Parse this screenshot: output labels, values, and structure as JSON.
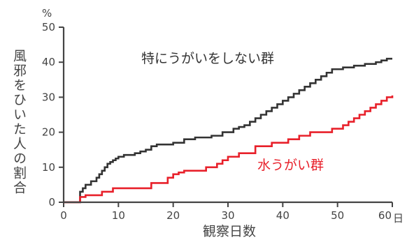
{
  "chart_data": {
    "type": "line",
    "step": true,
    "ylabel": "風邪をひいた人の割合",
    "yunit": "%",
    "xlabel": "観察日数",
    "xunit": "日",
    "xlim": [
      0,
      60
    ],
    "ylim": [
      0,
      50
    ],
    "xticks": [
      0,
      10,
      20,
      30,
      40,
      50,
      60
    ],
    "yticks": [
      0,
      10,
      20,
      30,
      40,
      50
    ],
    "grid": false,
    "series": [
      {
        "name": "特にうがいをしない群",
        "color": "#333333",
        "x": [
          0,
          3,
          3.5,
          4,
          5,
          6,
          6.5,
          7,
          7.5,
          8,
          8.5,
          9,
          9.5,
          10,
          11,
          13,
          14,
          15,
          16,
          17,
          20,
          22,
          24,
          27,
          29,
          31,
          32,
          33,
          34,
          35,
          36,
          37,
          38,
          39,
          40,
          41,
          42,
          43,
          44,
          45,
          46,
          47,
          48,
          49,
          51,
          53,
          55,
          57,
          58,
          59,
          60
        ],
        "values": [
          0,
          3,
          4,
          5,
          6,
          7,
          8,
          9,
          10,
          11,
          11.5,
          12,
          12.5,
          13,
          13.5,
          14,
          14.5,
          15,
          16,
          16.5,
          17,
          18,
          18.5,
          19,
          20,
          21,
          21.5,
          22,
          23,
          24,
          25,
          26,
          27,
          28,
          29,
          30,
          31,
          32,
          33,
          34,
          35,
          36,
          37,
          38,
          38.5,
          39,
          39.5,
          40,
          40.5,
          41,
          41
        ]
      },
      {
        "name": "水うがい群",
        "color": "#e8202a",
        "x": [
          0,
          3,
          4,
          6,
          7,
          9,
          16,
          19,
          20,
          21,
          22,
          26,
          28,
          29,
          30,
          32,
          35,
          38,
          41,
          43,
          45,
          49,
          51,
          52,
          53,
          54,
          55,
          56,
          57,
          58,
          59,
          60
        ],
        "values": [
          0,
          1.5,
          2,
          2,
          3,
          4,
          5.5,
          7,
          8,
          8.5,
          9,
          10,
          11,
          12,
          13,
          14,
          16,
          17,
          18,
          19,
          20,
          21,
          22,
          23,
          24,
          25,
          26,
          27,
          28,
          29,
          30,
          30.5
        ]
      }
    ]
  }
}
